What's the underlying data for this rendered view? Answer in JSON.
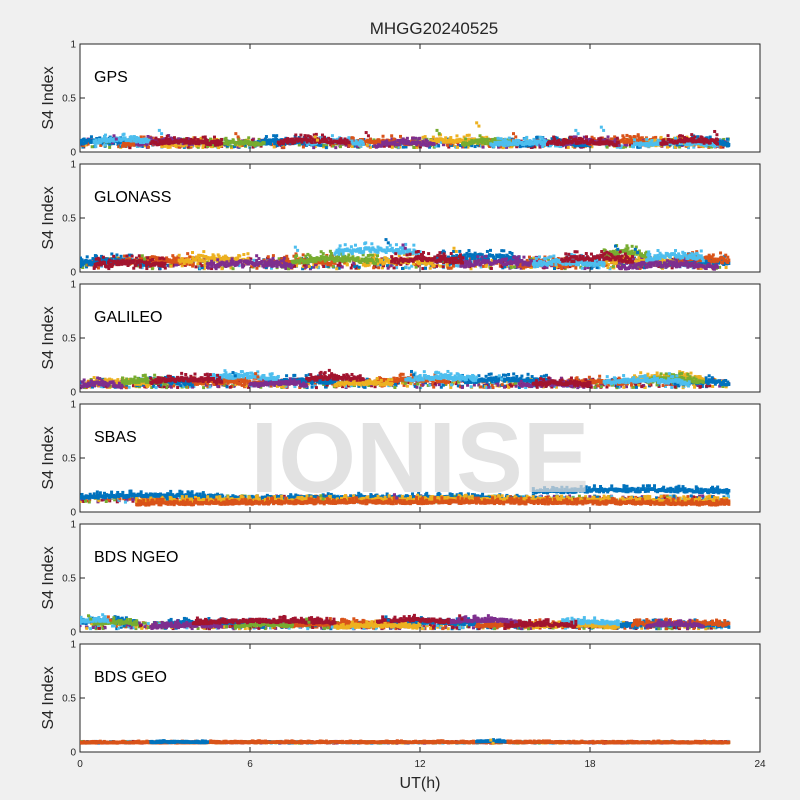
{
  "figure": {
    "title": "MHGG20240525",
    "watermark": "IONISE",
    "xlabel": "UT(h)"
  },
  "chart_data": {
    "type": "scatter",
    "title": "MHGG20240525",
    "xlabel": "UT(h)",
    "ylabel": "S4 Index",
    "xlim": [
      0,
      24
    ],
    "xticks": [
      0,
      6,
      12,
      18,
      24
    ],
    "xtick_labels": [
      "0",
      "6",
      "12",
      "18",
      "24"
    ],
    "ylim": [
      0,
      1
    ],
    "yticks": [
      0,
      0.5,
      1
    ],
    "ytick_labels": [
      "0",
      "0.5",
      "1"
    ],
    "grid": false,
    "data_end_hour": 22.9,
    "colors": [
      "#0072BD",
      "#D95319",
      "#EDB120",
      "#7E2F8E",
      "#77AC30",
      "#4DBEEE",
      "#A2142F"
    ],
    "panels": [
      {
        "label": "GPS",
        "ylabel": "S4 Index",
        "baseline": 0.08,
        "spread": 0.04,
        "series": [
          {
            "color": "#0072BD",
            "segments": [
              [
                0.0,
                1.8,
                0.09
              ],
              [
                6.0,
                8.5,
                0.08
              ],
              [
                15.5,
                18.0,
                0.07
              ],
              [
                21.0,
                22.9,
                0.08
              ]
            ]
          },
          {
            "color": "#D95319",
            "segments": [
              [
                1.5,
                3.5,
                0.07
              ],
              [
                9.5,
                12.0,
                0.08
              ],
              [
                18.0,
                20.5,
                0.09
              ]
            ]
          },
          {
            "color": "#EDB120",
            "segments": [
              [
                3.0,
                5.0,
                0.06
              ],
              [
                12.0,
                14.5,
                0.09
              ],
              [
                20.0,
                22.0,
                0.07
              ]
            ]
          },
          {
            "color": "#7E2F8E",
            "segments": [
              [
                2.0,
                4.0,
                0.08
              ],
              [
                10.5,
                12.5,
                0.07
              ],
              [
                17.0,
                19.0,
                0.08
              ]
            ]
          },
          {
            "color": "#77AC30",
            "segments": [
              [
                4.5,
                6.5,
                0.07
              ],
              [
                13.5,
                15.5,
                0.08
              ]
            ]
          },
          {
            "color": "#4DBEEE",
            "segments": [
              [
                0.5,
                2.5,
                0.1
              ],
              [
                8.0,
                10.0,
                0.08
              ],
              [
                14.5,
                17.0,
                0.07
              ],
              [
                19.5,
                22.5,
                0.07
              ]
            ]
          },
          {
            "color": "#A2142F",
            "segments": [
              [
                2.5,
                5.0,
                0.08
              ],
              [
                7.0,
                9.5,
                0.09
              ],
              [
                16.5,
                19.0,
                0.08
              ],
              [
                20.5,
                22.5,
                0.09
              ]
            ]
          }
        ],
        "spikes": [
          [
            1.2,
            0.15
          ],
          [
            2.8,
            0.2
          ],
          [
            5.5,
            0.17
          ],
          [
            8.3,
            0.14
          ],
          [
            10.1,
            0.18
          ],
          [
            11.0,
            0.15
          ],
          [
            12.6,
            0.2
          ],
          [
            14.0,
            0.27
          ],
          [
            15.3,
            0.17
          ],
          [
            17.5,
            0.2
          ],
          [
            18.4,
            0.23
          ],
          [
            19.7,
            0.16
          ],
          [
            22.4,
            0.19
          ]
        ]
      },
      {
        "label": "GLONASS",
        "ylabel": "S4 Index",
        "baseline": 0.08,
        "spread": 0.05,
        "series": [
          {
            "color": "#0072BD",
            "segments": [
              [
                0.0,
                2.5,
                0.08
              ],
              [
                12.5,
                15.5,
                0.12
              ],
              [
                20.5,
                22.9,
                0.08
              ]
            ]
          },
          {
            "color": "#D95319",
            "segments": [
              [
                1.5,
                4.0,
                0.09
              ],
              [
                6.5,
                9.0,
                0.08
              ],
              [
                15.5,
                17.5,
                0.06
              ],
              [
                21.0,
                22.9,
                0.1
              ]
            ]
          },
          {
            "color": "#EDB120",
            "segments": [
              [
                3.5,
                6.0,
                0.1
              ],
              [
                10.0,
                12.5,
                0.08
              ],
              [
                18.5,
                21.0,
                0.09
              ]
            ]
          },
          {
            "color": "#7E2F8E",
            "segments": [
              [
                4.5,
                7.5,
                0.06
              ],
              [
                13.5,
                16.5,
                0.07
              ],
              [
                19.0,
                22.5,
                0.05
              ]
            ]
          },
          {
            "color": "#77AC30",
            "segments": [
              [
                7.5,
                10.5,
                0.1
              ],
              [
                18.5,
                20.0,
                0.16
              ]
            ]
          },
          {
            "color": "#4DBEEE",
            "segments": [
              [
                9.0,
                12.0,
                0.18
              ],
              [
                16.0,
                18.5,
                0.07
              ],
              [
                20.0,
                22.0,
                0.13
              ]
            ]
          },
          {
            "color": "#A2142F",
            "segments": [
              [
                0.5,
                3.0,
                0.06
              ],
              [
                11.0,
                13.5,
                0.1
              ],
              [
                17.0,
                19.5,
                0.11
              ]
            ]
          }
        ],
        "spikes": [
          [
            2.2,
            0.15
          ],
          [
            3.8,
            0.17
          ],
          [
            7.6,
            0.23
          ],
          [
            10.8,
            0.3
          ],
          [
            11.4,
            0.25
          ],
          [
            13.2,
            0.22
          ],
          [
            18.9,
            0.24
          ],
          [
            19.6,
            0.21
          ],
          [
            21.6,
            0.17
          ]
        ]
      },
      {
        "label": "GALILEO",
        "ylabel": "S4 Index",
        "baseline": 0.08,
        "spread": 0.04,
        "series": [
          {
            "color": "#0072BD",
            "segments": [
              [
                2.0,
                4.0,
                0.08
              ],
              [
                7.0,
                9.0,
                0.09
              ],
              [
                13.5,
                16.5,
                0.1
              ],
              [
                21.0,
                22.9,
                0.08
              ]
            ]
          },
          {
            "color": "#D95319",
            "segments": [
              [
                4.0,
                6.5,
                0.08
              ],
              [
                10.5,
                13.0,
                0.1
              ],
              [
                17.0,
                19.5,
                0.08
              ]
            ]
          },
          {
            "color": "#EDB120",
            "segments": [
              [
                0.5,
                2.5,
                0.08
              ],
              [
                9.0,
                11.0,
                0.07
              ],
              [
                19.5,
                22.0,
                0.12
              ]
            ]
          },
          {
            "color": "#7E2F8E",
            "segments": [
              [
                0.0,
                1.5,
                0.06
              ],
              [
                6.0,
                8.0,
                0.07
              ],
              [
                15.5,
                17.5,
                0.06
              ]
            ]
          },
          {
            "color": "#77AC30",
            "segments": [
              [
                1.5,
                3.0,
                0.09
              ],
              [
                20.0,
                22.0,
                0.1
              ]
            ]
          },
          {
            "color": "#4DBEEE",
            "segments": [
              [
                4.5,
                7.0,
                0.13
              ],
              [
                11.5,
                14.0,
                0.12
              ],
              [
                18.5,
                21.5,
                0.09
              ]
            ]
          },
          {
            "color": "#A2142F",
            "segments": [
              [
                2.5,
                5.0,
                0.1
              ],
              [
                8.0,
                10.0,
                0.12
              ],
              [
                16.0,
                18.0,
                0.07
              ]
            ]
          }
        ],
        "spikes": [
          [
            1.5,
            0.13
          ],
          [
            5.4,
            0.18
          ],
          [
            6.2,
            0.17
          ],
          [
            8.8,
            0.2
          ],
          [
            11.7,
            0.19
          ],
          [
            12.9,
            0.16
          ],
          [
            14.8,
            0.15
          ],
          [
            20.8,
            0.17
          ]
        ]
      },
      {
        "label": "SBAS",
        "ylabel": "S4 Index",
        "baseline": 0.12,
        "spread": 0.03,
        "series": [
          {
            "color": "#0072BD",
            "segments": [
              [
                0.0,
                5.0,
                0.14
              ],
              [
                5.0,
                16.0,
                0.12
              ],
              [
                16.0,
                22.9,
                0.19
              ]
            ]
          },
          {
            "color": "#EDB120",
            "segments": [
              [
                2.0,
                22.9,
                0.1
              ]
            ]
          },
          {
            "color": "#D95319",
            "segments": [
              [
                2.0,
                22.9,
                0.08
              ]
            ]
          }
        ],
        "spikes": [
          [
            3.0,
            0.15
          ],
          [
            8.5,
            0.15
          ],
          [
            11.1,
            0.16
          ],
          [
            14.9,
            0.15
          ]
        ]
      },
      {
        "label": "BDS NGEO",
        "ylabel": "S4 Index",
        "baseline": 0.06,
        "spread": 0.03,
        "series": [
          {
            "color": "#0072BD",
            "segments": [
              [
                0.0,
                2.0,
                0.09
              ],
              [
                3.0,
                7.0,
                0.08
              ],
              [
                11.0,
                14.0,
                0.08
              ],
              [
                19.0,
                22.9,
                0.06
              ]
            ]
          },
          {
            "color": "#D95319",
            "segments": [
              [
                7.5,
                11.0,
                0.07
              ],
              [
                14.0,
                18.5,
                0.06
              ],
              [
                19.5,
                22.9,
                0.07
              ]
            ]
          },
          {
            "color": "#EDB120",
            "segments": [
              [
                9.0,
                12.0,
                0.05
              ],
              [
                16.0,
                19.0,
                0.05
              ]
            ]
          },
          {
            "color": "#7E2F8E",
            "segments": [
              [
                2.5,
                5.0,
                0.05
              ],
              [
                13.0,
                15.5,
                0.1
              ],
              [
                20.0,
                22.0,
                0.06
              ]
            ]
          },
          {
            "color": "#77AC30",
            "segments": [
              [
                0.5,
                2.0,
                0.08
              ],
              [
                5.5,
                7.5,
                0.06
              ]
            ]
          },
          {
            "color": "#4DBEEE",
            "segments": [
              [
                0.0,
                1.0,
                0.1
              ],
              [
                17.0,
                19.0,
                0.08
              ]
            ]
          },
          {
            "color": "#A2142F",
            "segments": [
              [
                4.0,
                9.0,
                0.09
              ],
              [
                10.5,
                13.0,
                0.1
              ],
              [
                15.0,
                17.5,
                0.06
              ]
            ]
          }
        ],
        "spikes": [
          [
            0.3,
            0.15
          ],
          [
            0.8,
            0.16
          ],
          [
            1.0,
            0.14
          ],
          [
            8.0,
            0.12
          ],
          [
            10.8,
            0.14
          ],
          [
            13.4,
            0.15
          ]
        ]
      },
      {
        "label": "BDS GEO",
        "ylabel": "S4 Index",
        "baseline": 0.09,
        "spread": 0.008,
        "series": [
          {
            "color": "#D95319",
            "segments": [
              [
                0.0,
                22.9,
                0.09
              ]
            ]
          },
          {
            "color": "#0072BD",
            "segments": [
              [
                2.5,
                4.5,
                0.092
              ],
              [
                14.0,
                15.0,
                0.1
              ]
            ]
          }
        ],
        "spikes": [
          [
            14.5,
            0.11
          ]
        ]
      }
    ]
  }
}
